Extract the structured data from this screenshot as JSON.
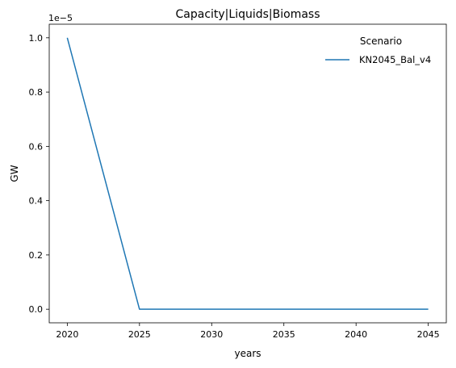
{
  "chart_data": {
    "type": "line",
    "title": "Capacity|Liquids|Biomass",
    "xlabel": "years",
    "ylabel": "GW",
    "y_offset_label": "1e−5",
    "x": [
      2020,
      2025,
      2030,
      2035,
      2040,
      2045
    ],
    "series": [
      {
        "name": "KN2045_Bal_v4",
        "color": "#1f77b4",
        "values": [
          1.0,
          0.0,
          0.0,
          0.0,
          0.0,
          0.0
        ]
      }
    ],
    "xlim": [
      2018.75,
      2046.25
    ],
    "ylim": [
      -0.05,
      1.05
    ],
    "x_ticks": [
      2020,
      2025,
      2030,
      2035,
      2040,
      2045
    ],
    "x_tick_labels": [
      "2020",
      "2025",
      "2030",
      "2035",
      "2040",
      "2045"
    ],
    "y_ticks": [
      0.0,
      0.2,
      0.4,
      0.6,
      0.8,
      1.0
    ],
    "y_tick_labels": [
      "0.0",
      "0.2",
      "0.4",
      "0.6",
      "0.8",
      "1.0"
    ],
    "legend": {
      "title": "Scenario",
      "position": "top-right",
      "frame": false
    },
    "grid": false
  }
}
